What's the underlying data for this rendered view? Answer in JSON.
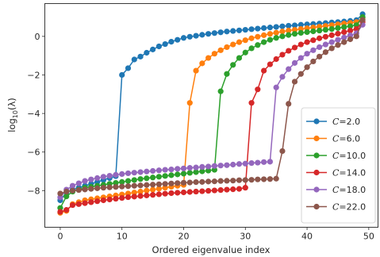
{
  "chart_data": {
    "type": "line",
    "xlabel": "Ordered eigenvalue index",
    "ylabel_prefix": "log",
    "ylabel_sub": "10",
    "ylabel_suffix": "(λ)",
    "xlim": [
      -2.5,
      51.5
    ],
    "ylim": [
      -9.9,
      1.7
    ],
    "xticks": [
      0,
      10,
      20,
      30,
      40,
      50
    ],
    "yticks": [
      -8,
      -6,
      -4,
      -2,
      0
    ],
    "ytick_labels": [
      "−8",
      "−6",
      "−4",
      "−2",
      "0"
    ],
    "grid": false,
    "legend_placement": "lower-right",
    "series": [
      {
        "name": "=2.0",
        "label_var": "C",
        "color": "#1f77b4",
        "x": [
          0,
          1,
          2,
          3,
          4,
          5,
          6,
          7,
          8,
          9,
          10,
          11,
          12,
          13,
          14,
          15,
          16,
          17,
          18,
          19,
          20,
          21,
          22,
          23,
          24,
          25,
          26,
          27,
          28,
          29,
          30,
          31,
          32,
          33,
          34,
          35,
          36,
          37,
          38,
          39,
          40,
          41,
          42,
          43,
          44,
          45,
          46,
          47,
          48,
          49
        ],
        "y": [
          -8.5,
          -8.1,
          -7.95,
          -7.85,
          -7.75,
          -7.65,
          -7.55,
          -7.45,
          -7.35,
          -7.25,
          -2.0,
          -1.65,
          -1.2,
          -1.05,
          -0.85,
          -0.68,
          -0.52,
          -0.4,
          -0.28,
          -0.18,
          -0.08,
          -0.02,
          0.03,
          0.08,
          0.13,
          0.17,
          0.21,
          0.25,
          0.28,
          0.31,
          0.34,
          0.37,
          0.4,
          0.43,
          0.46,
          0.49,
          0.52,
          0.55,
          0.57,
          0.6,
          0.62,
          0.64,
          0.66,
          0.69,
          0.72,
          0.74,
          0.77,
          0.8,
          0.84,
          1.15
        ]
      },
      {
        "name": "=6.0",
        "label_var": "C",
        "color": "#ff7f0e",
        "x": [
          0,
          1,
          2,
          3,
          4,
          5,
          6,
          7,
          8,
          9,
          10,
          11,
          12,
          13,
          14,
          15,
          16,
          17,
          18,
          19,
          20,
          21,
          22,
          23,
          24,
          25,
          26,
          27,
          28,
          29,
          30,
          31,
          32,
          33,
          34,
          35,
          36,
          37,
          38,
          39,
          40,
          41,
          42,
          43,
          44,
          45,
          46,
          47,
          48,
          49
        ],
        "y": [
          -9.15,
          -9.05,
          -8.7,
          -8.6,
          -8.5,
          -8.45,
          -8.4,
          -8.35,
          -8.3,
          -8.25,
          -8.2,
          -8.15,
          -8.1,
          -8.05,
          -8.0,
          -7.95,
          -7.9,
          -7.85,
          -7.8,
          -7.75,
          -7.7,
          -3.45,
          -1.78,
          -1.4,
          -1.12,
          -0.9,
          -0.72,
          -0.56,
          -0.42,
          -0.3,
          -0.2,
          -0.1,
          -0.02,
          0.06,
          0.13,
          0.19,
          0.25,
          0.3,
          0.34,
          0.38,
          0.42,
          0.46,
          0.5,
          0.54,
          0.58,
          0.62,
          0.66,
          0.7,
          0.74,
          0.95
        ]
      },
      {
        "name": "=10.0",
        "label_var": "C",
        "color": "#2ca02c",
        "x": [
          0,
          1,
          2,
          3,
          4,
          5,
          6,
          7,
          8,
          9,
          10,
          11,
          12,
          13,
          14,
          15,
          16,
          17,
          18,
          19,
          20,
          21,
          22,
          23,
          24,
          25,
          26,
          27,
          28,
          29,
          30,
          31,
          32,
          33,
          34,
          35,
          36,
          37,
          38,
          39,
          40,
          41,
          42,
          43,
          44,
          45,
          46,
          47,
          48,
          49
        ],
        "y": [
          -8.9,
          -8.3,
          -8.05,
          -7.95,
          -7.85,
          -7.8,
          -7.75,
          -7.7,
          -7.65,
          -7.6,
          -7.55,
          -7.5,
          -7.45,
          -7.4,
          -7.36,
          -7.32,
          -7.28,
          -7.24,
          -7.2,
          -7.16,
          -7.12,
          -7.08,
          -7.04,
          -7.0,
          -6.96,
          -6.92,
          -2.85,
          -1.95,
          -1.48,
          -1.12,
          -0.84,
          -0.62,
          -0.45,
          -0.3,
          -0.18,
          -0.08,
          0.0,
          0.07,
          0.13,
          0.18,
          0.22,
          0.26,
          0.3,
          0.34,
          0.38,
          0.43,
          0.48,
          0.53,
          0.58,
          1.0
        ]
      },
      {
        "name": "=14.0",
        "label_var": "C",
        "color": "#d62728",
        "x": [
          0,
          1,
          2,
          3,
          4,
          5,
          6,
          7,
          8,
          9,
          10,
          11,
          12,
          13,
          14,
          15,
          16,
          17,
          18,
          19,
          20,
          21,
          22,
          23,
          24,
          25,
          26,
          27,
          28,
          29,
          30,
          31,
          32,
          33,
          34,
          35,
          36,
          37,
          38,
          39,
          40,
          41,
          42,
          43,
          44,
          45,
          46,
          47,
          48,
          49
        ],
        "y": [
          -9.1,
          -9.0,
          -8.75,
          -8.7,
          -8.65,
          -8.6,
          -8.55,
          -8.5,
          -8.46,
          -8.42,
          -8.38,
          -8.34,
          -8.31,
          -8.28,
          -8.25,
          -8.22,
          -8.19,
          -8.16,
          -8.13,
          -8.11,
          -8.09,
          -8.07,
          -8.05,
          -8.03,
          -8.01,
          -7.99,
          -7.97,
          -7.95,
          -7.93,
          -7.91,
          -7.85,
          -3.45,
          -2.75,
          -1.78,
          -1.45,
          -1.18,
          -0.95,
          -0.75,
          -0.58,
          -0.42,
          -0.3,
          -0.2,
          -0.1,
          -0.02,
          0.06,
          0.14,
          0.22,
          0.3,
          0.38,
          0.75
        ]
      },
      {
        "name": "=18.0",
        "label_var": "C",
        "color": "#9467bd",
        "x": [
          0,
          1,
          2,
          3,
          4,
          5,
          6,
          7,
          8,
          9,
          10,
          11,
          12,
          13,
          14,
          15,
          16,
          17,
          18,
          19,
          20,
          21,
          22,
          23,
          24,
          25,
          26,
          27,
          28,
          29,
          30,
          31,
          32,
          33,
          34,
          35,
          36,
          37,
          38,
          39,
          40,
          41,
          42,
          43,
          44,
          45,
          46,
          47,
          48,
          49
        ],
        "y": [
          -8.35,
          -7.95,
          -7.75,
          -7.62,
          -7.5,
          -7.42,
          -7.35,
          -7.28,
          -7.23,
          -7.18,
          -7.14,
          -7.1,
          -7.07,
          -7.04,
          -7.01,
          -6.98,
          -6.95,
          -6.92,
          -6.9,
          -6.87,
          -6.85,
          -6.82,
          -6.8,
          -6.77,
          -6.75,
          -6.72,
          -6.7,
          -6.68,
          -6.65,
          -6.62,
          -6.6,
          -6.57,
          -6.55,
          -6.52,
          -6.5,
          -2.65,
          -2.1,
          -1.7,
          -1.38,
          -1.12,
          -0.9,
          -0.72,
          -0.56,
          -0.42,
          -0.3,
          -0.18,
          -0.06,
          0.05,
          0.16,
          0.6
        ]
      },
      {
        "name": "=22.0",
        "label_var": "C",
        "color": "#8c564b",
        "x": [
          0,
          1,
          2,
          3,
          4,
          5,
          6,
          7,
          8,
          9,
          10,
          11,
          12,
          13,
          14,
          15,
          16,
          17,
          18,
          19,
          20,
          21,
          22,
          23,
          24,
          25,
          26,
          27,
          28,
          29,
          30,
          31,
          32,
          33,
          34,
          35,
          36,
          37,
          38,
          39,
          40,
          41,
          42,
          43,
          44,
          45,
          46,
          47,
          48,
          49
        ],
        "y": [
          -8.15,
          -8.05,
          -8.0,
          -7.97,
          -7.94,
          -7.91,
          -7.88,
          -7.85,
          -7.83,
          -7.81,
          -7.79,
          -7.77,
          -7.75,
          -7.73,
          -7.71,
          -7.69,
          -7.67,
          -7.65,
          -7.63,
          -7.61,
          -7.59,
          -7.58,
          -7.56,
          -7.55,
          -7.53,
          -7.52,
          -7.5,
          -7.49,
          -7.48,
          -7.46,
          -7.45,
          -7.44,
          -7.42,
          -7.41,
          -7.4,
          -7.38,
          -5.95,
          -3.5,
          -2.35,
          -1.95,
          -1.6,
          -1.3,
          -1.05,
          -0.82,
          -0.62,
          -0.45,
          -0.3,
          -0.15,
          0.0,
          0.85
        ]
      }
    ]
  }
}
